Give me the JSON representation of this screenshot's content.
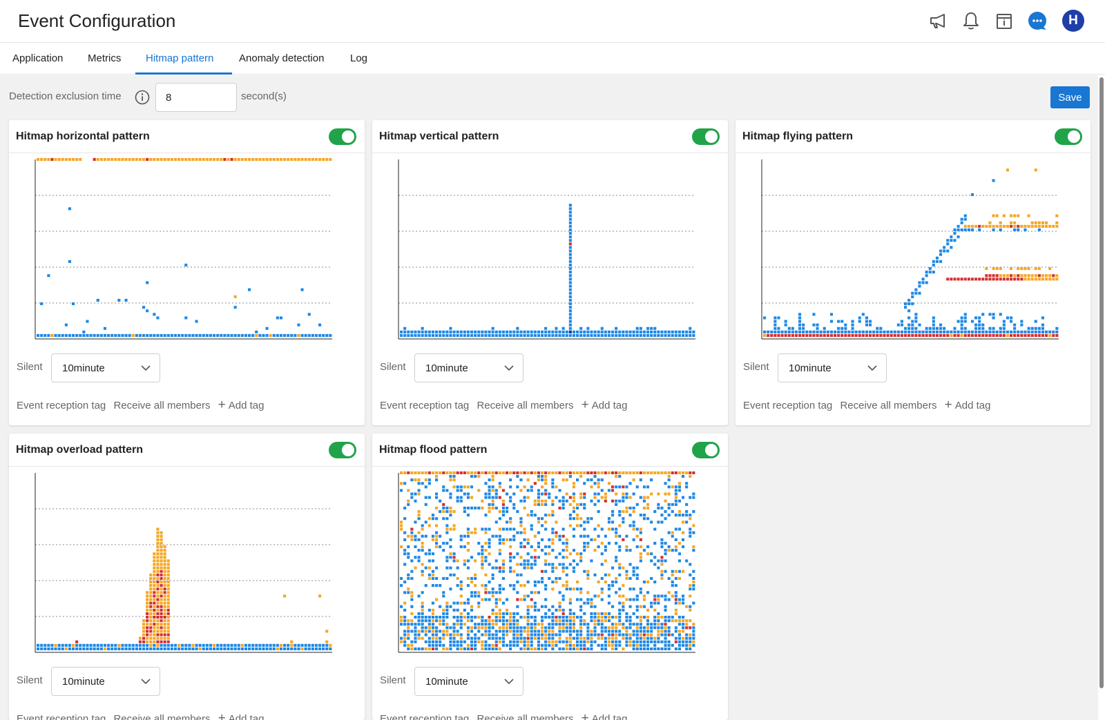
{
  "header": {
    "title": "Event Configuration",
    "icons": [
      "megaphone-icon",
      "bell-icon",
      "calendar-icon",
      "chat-icon"
    ],
    "avatar_letter": "H",
    "colors": {
      "chat": "#1976d2",
      "avatar": "#1f3fa8"
    }
  },
  "tabs": [
    {
      "label": "Application"
    },
    {
      "label": "Metrics"
    },
    {
      "label": "Hitmap pattern",
      "active": true
    },
    {
      "label": "Anomaly detection"
    },
    {
      "label": "Log"
    }
  ],
  "toolbar": {
    "exclusion_label": "Detection exclusion time",
    "exclusion_value": "8",
    "exclusion_unit": "second(s)",
    "save_label": "Save"
  },
  "card_labels": {
    "silent": "Silent",
    "silent_value": "10minute",
    "reception_tag": "Event reception tag",
    "receive_all": "Receive all members",
    "add_tag": "Add tag"
  },
  "colors": {
    "low": "#1e88e5",
    "medium": "#f5a623",
    "high": "#d32f2f",
    "toggle_on": "#21a34a",
    "accent": "#1976d2"
  },
  "cards": [
    {
      "title": "Hitmap horizontal pattern",
      "enabled": true,
      "pattern": "horizontal"
    },
    {
      "title": "Hitmap vertical pattern",
      "enabled": true,
      "pattern": "vertical"
    },
    {
      "title": "Hitmap flying pattern",
      "enabled": true,
      "pattern": "flying"
    },
    {
      "title": "Hitmap overload pattern",
      "enabled": true,
      "pattern": "overload"
    },
    {
      "title": "Hitmap flood pattern",
      "enabled": true,
      "pattern": "flood"
    }
  ]
}
